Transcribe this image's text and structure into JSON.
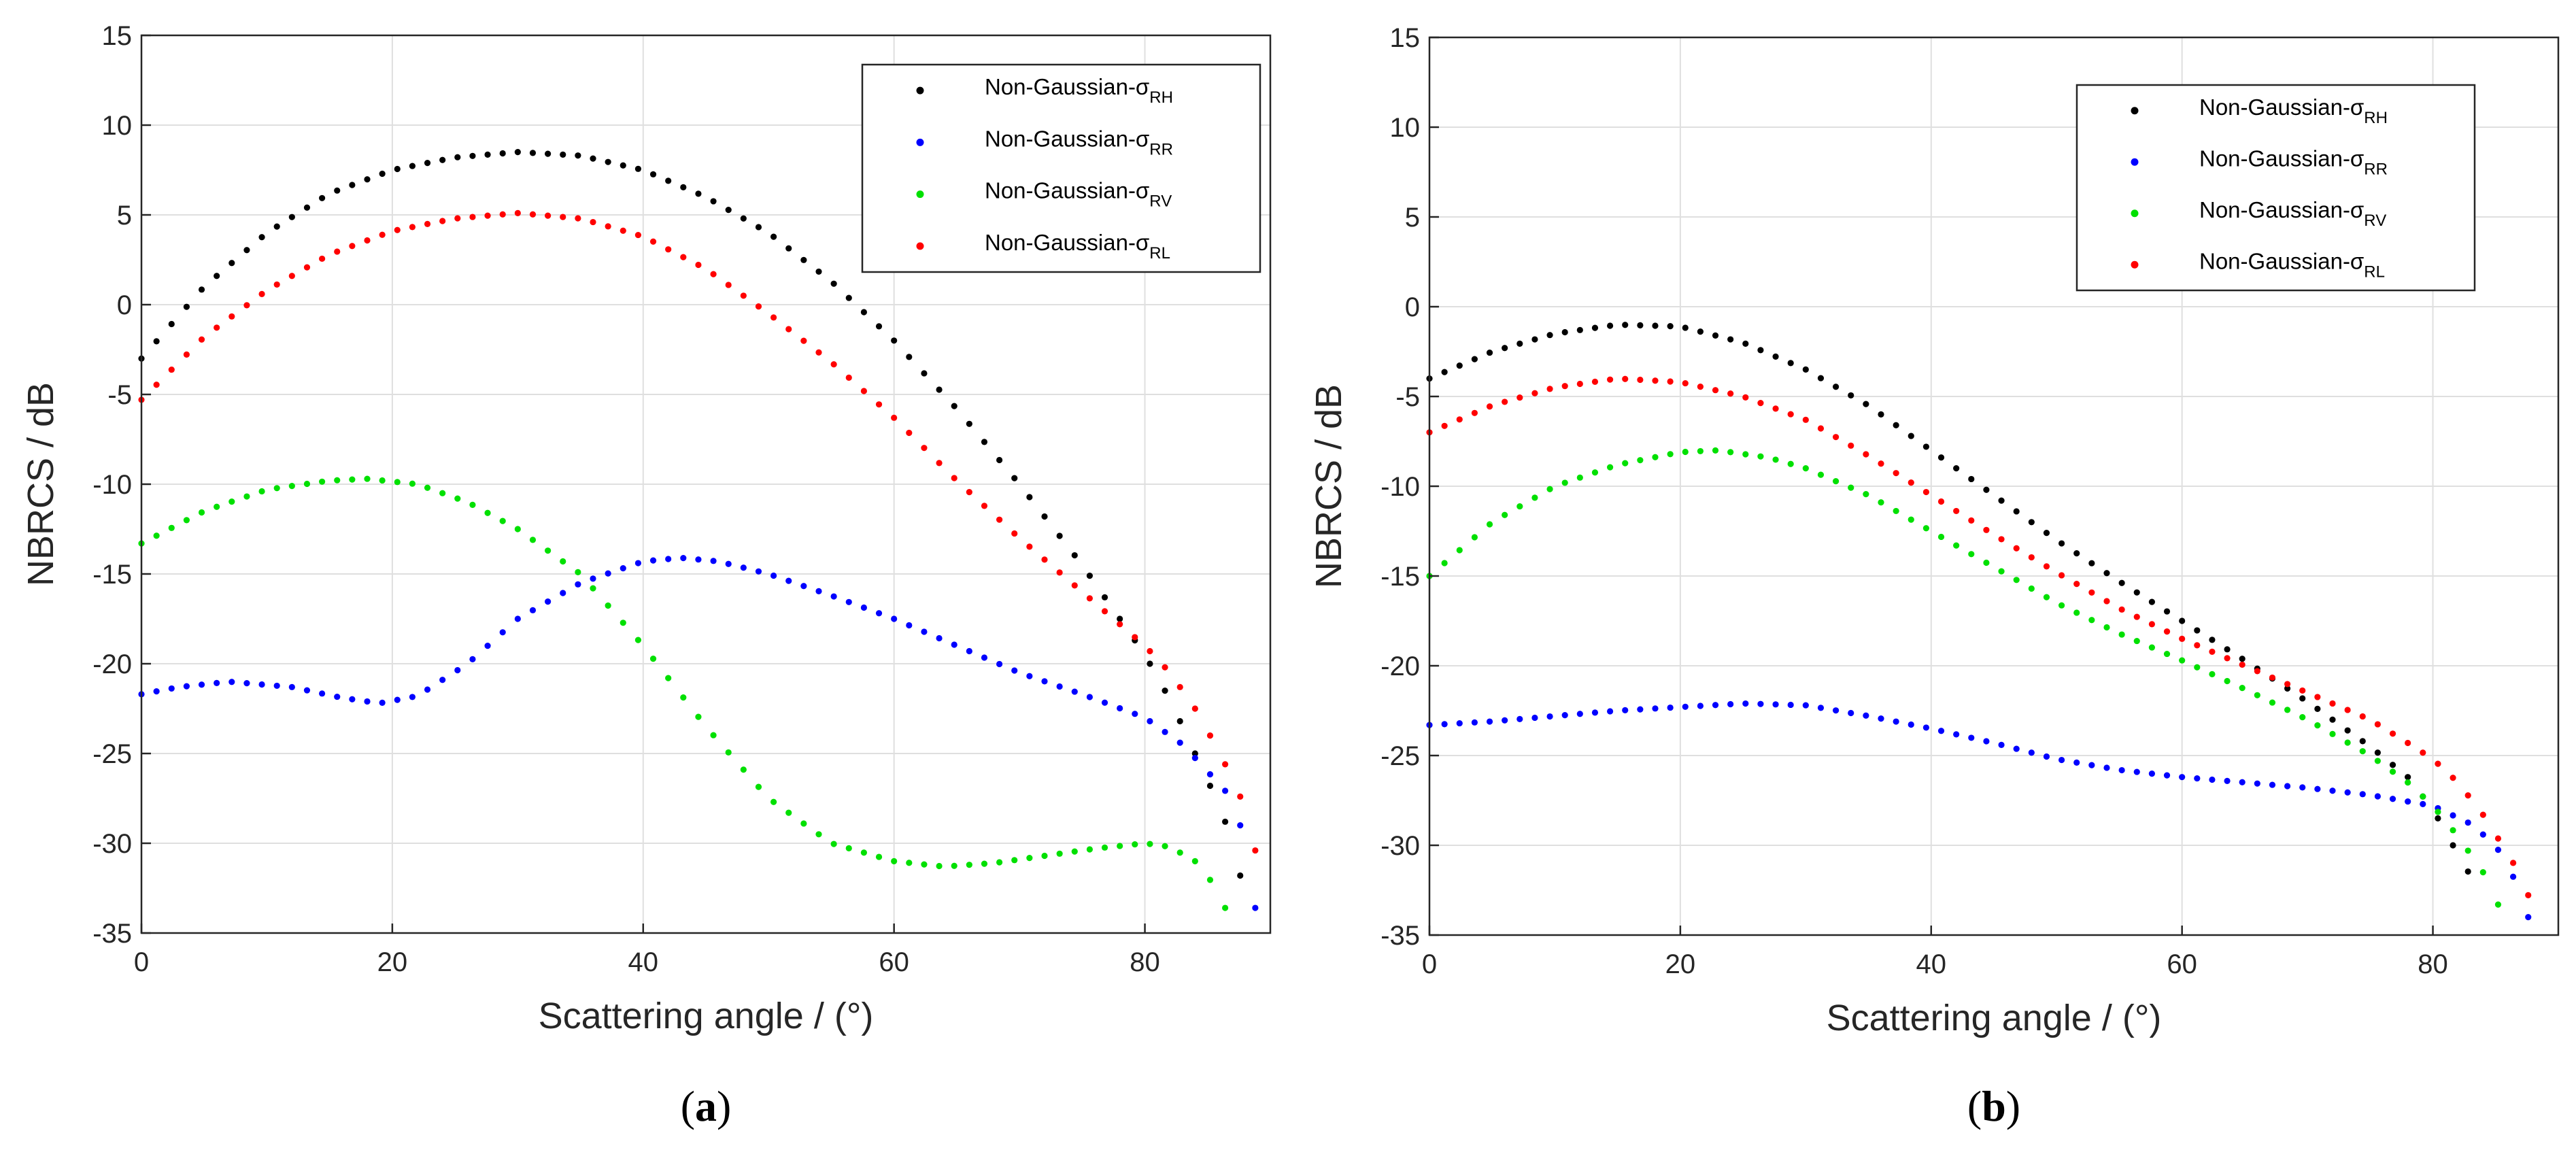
{
  "chart_data": [
    {
      "type": "scatter",
      "panel_label": "a",
      "xlabel": "Scattering angle  / (°)",
      "ylabel": "NBRCS / dB",
      "xlim": [
        0,
        90
      ],
      "ylim": [
        -35,
        15
      ],
      "xticks": [
        0,
        20,
        40,
        60,
        80
      ],
      "yticks": [
        15,
        10,
        5,
        0,
        -5,
        -10,
        -15,
        -20,
        -25,
        -30,
        -35
      ],
      "grid": true,
      "legend_position": "top-right",
      "series": [
        {
          "name": "Non-Gaussian-σRH",
          "label_main": "Non-Gaussian-σ",
          "label_sub": "RH",
          "color": "#000000",
          "points": [
            [
              0,
              -3
            ],
            [
              5,
              1
            ],
            [
              10,
              4
            ],
            [
              15,
              6.2
            ],
            [
              20,
              7.5
            ],
            [
              25,
              8.2
            ],
            [
              30,
              8.5
            ],
            [
              35,
              8.3
            ],
            [
              40,
              7.5
            ],
            [
              45,
              6
            ],
            [
              50,
              4
            ],
            [
              55,
              1.3
            ],
            [
              60,
              -2
            ],
            [
              65,
              -5.8
            ],
            [
              70,
              -10
            ],
            [
              75,
              -14.5
            ],
            [
              80,
              -19.5
            ],
            [
              82,
              -22
            ],
            [
              84,
              -25
            ],
            [
              85,
              -26.5
            ],
            [
              86,
              -28
            ],
            [
              87,
              -30
            ],
            [
              88,
              -33
            ],
            [
              88.5,
              -34.5
            ]
          ]
        },
        {
          "name": "Non-Gaussian-σRR",
          "label_main": "Non-Gaussian-σ",
          "label_sub": "RR",
          "color": "#0000ff",
          "points": [
            [
              0,
              -21.7
            ],
            [
              3,
              -21.3
            ],
            [
              7,
              -21
            ],
            [
              12,
              -21.3
            ],
            [
              16,
              -21.9
            ],
            [
              19,
              -22.2
            ],
            [
              22,
              -21.8
            ],
            [
              26,
              -20
            ],
            [
              30,
              -17.5
            ],
            [
              35,
              -15.5
            ],
            [
              40,
              -14.3
            ],
            [
              43,
              -14.1
            ],
            [
              46,
              -14.3
            ],
            [
              50,
              -15
            ],
            [
              55,
              -16.2
            ],
            [
              60,
              -17.5
            ],
            [
              65,
              -19
            ],
            [
              70,
              -20.5
            ],
            [
              75,
              -21.7
            ],
            [
              80,
              -23
            ],
            [
              83,
              -24.5
            ],
            [
              85,
              -26
            ],
            [
              86,
              -26.8
            ],
            [
              87,
              -27.5
            ],
            [
              88,
              -30
            ],
            [
              89,
              -34.5
            ]
          ]
        },
        {
          "name": "Non-Gaussian-σRV",
          "label_main": "Non-Gaussian-σ",
          "label_sub": "RV",
          "color": "#00e000",
          "points": [
            [
              0,
              -13.3
            ],
            [
              5,
              -11.5
            ],
            [
              10,
              -10.3
            ],
            [
              15,
              -9.8
            ],
            [
              18,
              -9.7
            ],
            [
              22,
              -10
            ],
            [
              26,
              -11
            ],
            [
              30,
              -12.5
            ],
            [
              35,
              -15
            ],
            [
              40,
              -19
            ],
            [
              45,
              -23.5
            ],
            [
              50,
              -27.5
            ],
            [
              55,
              -30
            ],
            [
              60,
              -31
            ],
            [
              64,
              -31.3
            ],
            [
              68,
              -31.1
            ],
            [
              72,
              -30.7
            ],
            [
              76,
              -30.3
            ],
            [
              80,
              -30
            ],
            [
              82,
              -30.2
            ],
            [
              84,
              -31
            ],
            [
              85,
              -31.8
            ],
            [
              86,
              -33
            ],
            [
              87,
              -34.5
            ]
          ]
        },
        {
          "name": "Non-Gaussian-σRL",
          "label_main": "Non-Gaussian-σ",
          "label_sub": "RL",
          "color": "#ff0000",
          "points": [
            [
              0,
              -5.3
            ],
            [
              5,
              -1.8
            ],
            [
              10,
              0.8
            ],
            [
              15,
              2.8
            ],
            [
              20,
              4.1
            ],
            [
              25,
              4.8
            ],
            [
              30,
              5.1
            ],
            [
              35,
              4.8
            ],
            [
              40,
              3.8
            ],
            [
              45,
              2
            ],
            [
              50,
              -0.5
            ],
            [
              55,
              -3.2
            ],
            [
              60,
              -6.3
            ],
            [
              65,
              -9.8
            ],
            [
              70,
              -13
            ],
            [
              75,
              -16
            ],
            [
              80,
              -19
            ],
            [
              82,
              -20.5
            ],
            [
              84,
              -22.5
            ],
            [
              86,
              -25
            ],
            [
              87,
              -26.5
            ],
            [
              88,
              -28
            ],
            [
              89,
              -31
            ],
            [
              89.5,
              -33
            ]
          ]
        }
      ]
    },
    {
      "type": "scatter",
      "panel_label": "b",
      "xlabel": "Scattering angle  / (°)",
      "ylabel": "NBRCS / dB",
      "xlim": [
        0,
        90
      ],
      "ylim": [
        -35,
        15
      ],
      "xticks": [
        0,
        20,
        40,
        60,
        80
      ],
      "yticks": [
        15,
        10,
        5,
        0,
        -5,
        -10,
        -15,
        -20,
        -25,
        -30,
        -35
      ],
      "grid": true,
      "legend_position": "top-right",
      "series": [
        {
          "name": "Non-Gaussian-σRH",
          "label_main": "Non-Gaussian-σ",
          "label_sub": "RH",
          "color": "#000000",
          "points": [
            [
              0,
              -4
            ],
            [
              5,
              -2.5
            ],
            [
              10,
              -1.5
            ],
            [
              15,
              -1
            ],
            [
              20,
              -1.1
            ],
            [
              25,
              -2
            ],
            [
              30,
              -3.5
            ],
            [
              35,
              -5.5
            ],
            [
              40,
              -8
            ],
            [
              45,
              -10.5
            ],
            [
              50,
              -13
            ],
            [
              55,
              -15.3
            ],
            [
              60,
              -17.5
            ],
            [
              65,
              -19.7
            ],
            [
              70,
              -22
            ],
            [
              75,
              -24.5
            ],
            [
              78,
              -26.2
            ],
            [
              80,
              -28
            ],
            [
              82,
              -30.5
            ],
            [
              83,
              -31.7
            ],
            [
              84,
              -33.5
            ]
          ]
        },
        {
          "name": "Non-Gaussian-σRR",
          "label_main": "Non-Gaussian-σ",
          "label_sub": "RR",
          "color": "#0000ff",
          "points": [
            [
              0,
              -23.3
            ],
            [
              5,
              -23.1
            ],
            [
              10,
              -22.8
            ],
            [
              15,
              -22.5
            ],
            [
              20,
              -22.3
            ],
            [
              25,
              -22.1
            ],
            [
              30,
              -22.2
            ],
            [
              35,
              -22.8
            ],
            [
              40,
              -23.5
            ],
            [
              45,
              -24.3
            ],
            [
              50,
              -25.2
            ],
            [
              55,
              -25.8
            ],
            [
              60,
              -26.2
            ],
            [
              65,
              -26.5
            ],
            [
              70,
              -26.8
            ],
            [
              75,
              -27.2
            ],
            [
              80,
              -27.8
            ],
            [
              83,
              -28.8
            ],
            [
              85,
              -30
            ],
            [
              87,
              -32.5
            ],
            [
              88,
              -35
            ]
          ]
        },
        {
          "name": "Non-Gaussian-σRV",
          "label_main": "Non-Gaussian-σ",
          "label_sub": "RV",
          "color": "#00e000",
          "points": [
            [
              0,
              -15
            ],
            [
              5,
              -12
            ],
            [
              10,
              -10
            ],
            [
              15,
              -8.8
            ],
            [
              20,
              -8.1
            ],
            [
              23,
              -8
            ],
            [
              27,
              -8.4
            ],
            [
              30,
              -9
            ],
            [
              35,
              -10.5
            ],
            [
              40,
              -12.5
            ],
            [
              45,
              -14.5
            ],
            [
              50,
              -16.5
            ],
            [
              55,
              -18.2
            ],
            [
              60,
              -19.7
            ],
            [
              65,
              -21.3
            ],
            [
              70,
              -23
            ],
            [
              75,
              -25
            ],
            [
              78,
              -26.5
            ],
            [
              80,
              -27.8
            ],
            [
              82,
              -29.5
            ],
            [
              84,
              -31.5
            ],
            [
              86,
              -34.5
            ]
          ]
        },
        {
          "name": "Non-Gaussian-σRL",
          "label_main": "Non-Gaussian-σ",
          "label_sub": "RL",
          "color": "#ff0000",
          "points": [
            [
              0,
              -7
            ],
            [
              5,
              -5.5
            ],
            [
              10,
              -4.5
            ],
            [
              15,
              -4
            ],
            [
              20,
              -4.2
            ],
            [
              25,
              -5
            ],
            [
              30,
              -6.3
            ],
            [
              35,
              -8.3
            ],
            [
              40,
              -10.5
            ],
            [
              45,
              -12.7
            ],
            [
              50,
              -14.8
            ],
            [
              55,
              -16.8
            ],
            [
              60,
              -18.5
            ],
            [
              65,
              -20
            ],
            [
              70,
              -21.5
            ],
            [
              75,
              -23
            ],
            [
              78,
              -24.3
            ],
            [
              80,
              -25.2
            ],
            [
              82,
              -26.5
            ],
            [
              84,
              -28.3
            ],
            [
              86,
              -30.5
            ],
            [
              87,
              -31.7
            ],
            [
              88,
              -33.5
            ]
          ]
        }
      ]
    }
  ]
}
